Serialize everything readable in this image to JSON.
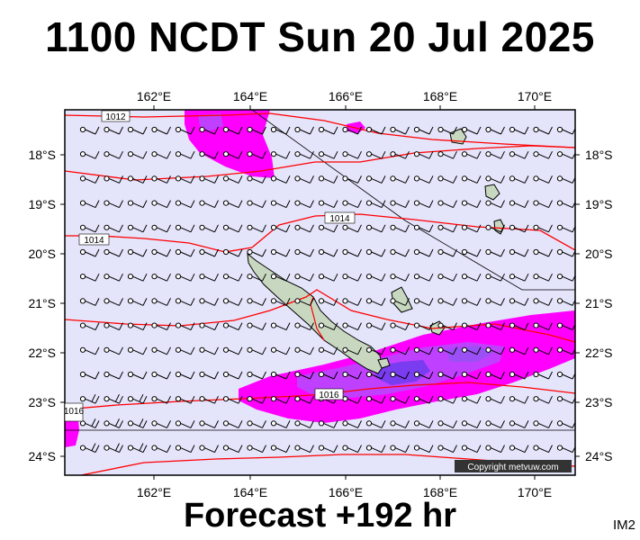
{
  "header": {
    "title": "1100 NCDT Sun 20 Jul 2025"
  },
  "footer": {
    "forecast": "Forecast +192 hr",
    "image_id": "IM2"
  },
  "map": {
    "lon_range": [
      160.2,
      170.9
    ],
    "lat_range": [
      -24.4,
      -17.0
    ],
    "lon_ticks": [
      "162°E",
      "164°E",
      "166°E",
      "168°E",
      "170°E"
    ],
    "lat_ticks": [
      "18°S",
      "19°S",
      "20°S",
      "21°S",
      "22°S",
      "23°S",
      "24°S"
    ],
    "isobar_labels": [
      "1012",
      "1014",
      "1014",
      "1016",
      "1016"
    ],
    "copyright": "Copyright metvuw.com",
    "colors": {
      "ocean": "#e4e4fb",
      "isobar": "#ff0000",
      "rain_light": "#ff00ff",
      "rain_medium": "#c040ff",
      "rain_heavy": "#7a3cf0",
      "land": "#c8d8c0"
    },
    "wind": "south-easterly trade winds, wind barbs across domain"
  }
}
